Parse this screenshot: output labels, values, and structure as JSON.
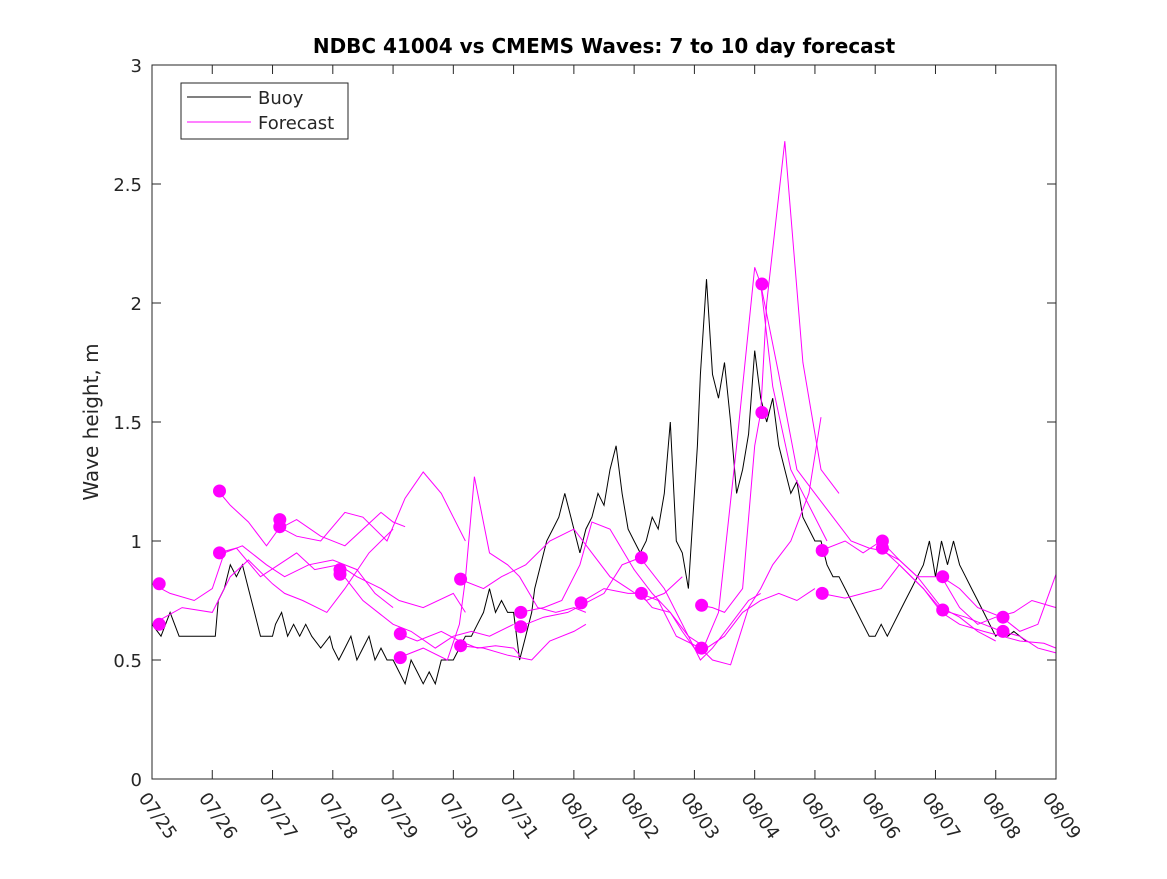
{
  "chart_data": {
    "type": "line",
    "title": "NDBC 41004 vs CMEMS Waves: 7 to 10 day forecast",
    "xlabel": "",
    "ylabel": "Wave height, m",
    "xlim": [
      0,
      15
    ],
    "ylim": [
      0,
      3
    ],
    "x_tick_labels": [
      "07/25",
      "07/26",
      "07/27",
      "07/28",
      "07/29",
      "07/30",
      "07/31",
      "08/01",
      "08/02",
      "08/03",
      "08/04",
      "08/05",
      "08/06",
      "08/07",
      "08/08",
      "08/09"
    ],
    "y_ticks": [
      0,
      0.5,
      1,
      1.5,
      2,
      2.5,
      3
    ],
    "y_tick_labels": [
      "0",
      "0.5",
      "1",
      "1.5",
      "2",
      "2.5",
      "3"
    ],
    "legend": {
      "position": "top-left",
      "entries": [
        "Buoy",
        "Forecast"
      ]
    },
    "colors": {
      "buoy": "#000000",
      "forecast": "#ff00ff"
    },
    "series": [
      {
        "name": "Buoy",
        "x": [
          0,
          0.15,
          0.3,
          0.45,
          0.6,
          0.75,
          0.9,
          1.05,
          1.1,
          1.2,
          1.3,
          1.4,
          1.5,
          1.6,
          1.7,
          1.8,
          1.9,
          2.0,
          2.05,
          2.15,
          2.25,
          2.35,
          2.45,
          2.55,
          2.65,
          2.8,
          2.95,
          3.0,
          3.1,
          3.2,
          3.3,
          3.4,
          3.5,
          3.6,
          3.7,
          3.8,
          3.9,
          4.0,
          4.1,
          4.2,
          4.3,
          4.4,
          4.5,
          4.6,
          4.7,
          4.8,
          4.9,
          5.0,
          5.1,
          5.2,
          5.3,
          5.4,
          5.5,
          5.6,
          5.7,
          5.8,
          5.9,
          6.0,
          6.1,
          6.2,
          6.3,
          6.35,
          6.45,
          6.55,
          6.65,
          6.75,
          6.85,
          6.95,
          7.0,
          7.05,
          7.1,
          7.2,
          7.3,
          7.4,
          7.5,
          7.6,
          7.7,
          7.8,
          7.9,
          8.0,
          8.1,
          8.2,
          8.3,
          8.4,
          8.5,
          8.6,
          8.7,
          8.8,
          8.9,
          9.0,
          9.05,
          9.1,
          9.2,
          9.3,
          9.4,
          9.5,
          9.6,
          9.7,
          9.8,
          9.9,
          10.0,
          10.1,
          10.2,
          10.3,
          10.4,
          10.5,
          10.6,
          10.7,
          10.8,
          10.9,
          11.0,
          11.1,
          11.2,
          11.3,
          11.4,
          11.5,
          11.6,
          11.7,
          11.8,
          11.9,
          12.0,
          12.1,
          12.2,
          12.3,
          12.4,
          12.5,
          12.6,
          12.7,
          12.8,
          12.9,
          13.0,
          13.1,
          13.2,
          13.3,
          13.4,
          13.5,
          13.6,
          13.7,
          13.8,
          13.9,
          14.0,
          14.1,
          14.2,
          14.3,
          14.4,
          14.5
        ],
        "values": [
          0.65,
          0.6,
          0.7,
          0.6,
          0.6,
          0.6,
          0.6,
          0.6,
          0.75,
          0.8,
          0.9,
          0.85,
          0.9,
          0.8,
          0.7,
          0.6,
          0.6,
          0.6,
          0.65,
          0.7,
          0.6,
          0.65,
          0.6,
          0.65,
          0.6,
          0.55,
          0.6,
          0.55,
          0.5,
          0.55,
          0.6,
          0.5,
          0.55,
          0.6,
          0.5,
          0.55,
          0.5,
          0.5,
          0.45,
          0.4,
          0.5,
          0.45,
          0.4,
          0.45,
          0.4,
          0.5,
          0.5,
          0.5,
          0.55,
          0.6,
          0.6,
          0.65,
          0.7,
          0.8,
          0.7,
          0.75,
          0.7,
          0.7,
          0.5,
          0.6,
          0.7,
          0.8,
          0.9,
          1.0,
          1.05,
          1.1,
          1.2,
          1.1,
          1.05,
          1.0,
          0.95,
          1.05,
          1.1,
          1.2,
          1.15,
          1.3,
          1.4,
          1.2,
          1.05,
          1.0,
          0.95,
          1.0,
          1.1,
          1.05,
          1.2,
          1.5,
          1.0,
          0.95,
          0.8,
          1.2,
          1.4,
          1.7,
          2.1,
          1.7,
          1.6,
          1.75,
          1.5,
          1.2,
          1.3,
          1.45,
          1.8,
          1.6,
          1.5,
          1.6,
          1.4,
          1.3,
          1.2,
          1.25,
          1.1,
          1.05,
          1.0,
          1.0,
          0.9,
          0.85,
          0.85,
          0.8,
          0.75,
          0.7,
          0.65,
          0.6,
          0.6,
          0.65,
          0.6,
          0.65,
          0.7,
          0.75,
          0.8,
          0.85,
          0.9,
          1.0,
          0.85,
          1.0,
          0.9,
          1.0,
          0.9,
          0.85,
          0.8,
          0.75,
          0.7,
          0.65,
          0.6,
          0.62,
          0.6,
          0.62,
          0.6,
          0.58
        ]
      },
      {
        "name": "Forecast",
        "x": [
          0,
          0.5,
          1.0,
          1.3,
          1.6,
          2.0,
          2.2,
          2.5,
          2.9,
          3.2,
          3.6,
          4.0
        ],
        "values": [
          0.65,
          0.72,
          0.7,
          0.85,
          0.92,
          0.82,
          0.78,
          0.75,
          0.7,
          0.8,
          0.95,
          1.05
        ]
      },
      {
        "x": [
          0,
          0.3,
          0.7,
          1.0,
          1.2,
          1.5,
          1.9,
          2.2,
          2.6,
          3.0,
          3.4,
          3.7,
          4.0
        ],
        "values": [
          0.82,
          0.78,
          0.75,
          0.8,
          0.95,
          0.98,
          0.9,
          0.85,
          0.9,
          0.92,
          0.88,
          0.78,
          0.72
        ]
      },
      {
        "x": [
          1.1,
          1.3,
          1.6,
          1.9,
          2.1,
          2.4,
          2.8,
          3.2,
          3.5,
          3.8,
          4.0,
          4.2
        ],
        "values": [
          1.21,
          1.15,
          1.08,
          0.98,
          1.05,
          1.09,
          1.02,
          0.98,
          1.05,
          1.12,
          1.08,
          1.06
        ]
      },
      {
        "x": [
          1.1,
          1.4,
          1.8,
          2.1,
          2.4,
          2.7,
          3.1,
          3.4,
          3.8,
          4.1,
          4.5,
          5.0,
          5.2
        ],
        "values": [
          0.95,
          0.97,
          0.85,
          0.9,
          0.95,
          0.88,
          0.9,
          0.85,
          0.8,
          0.75,
          0.72,
          0.78,
          0.7
        ]
      },
      {
        "x": [
          2.1,
          2.4,
          2.8,
          3.2,
          3.5,
          3.9,
          4.2,
          4.5,
          4.8,
          5.0,
          5.2
        ],
        "values": [
          1.06,
          1.02,
          1.0,
          1.12,
          1.1,
          1.0,
          1.18,
          1.29,
          1.2,
          1.1,
          1.0
        ]
      },
      {
        "x": [
          3.1,
          3.5,
          4.0,
          4.3,
          4.7,
          5.0,
          5.3,
          5.6,
          6.0
        ],
        "values": [
          0.88,
          0.75,
          0.65,
          0.62,
          0.55,
          0.6,
          0.62,
          0.6,
          0.65
        ]
      },
      {
        "x": [
          4.1,
          4.4,
          4.8,
          5.1,
          5.4,
          5.7,
          6.0,
          6.1
        ],
        "values": [
          0.61,
          0.58,
          0.62,
          0.58,
          0.55,
          0.56,
          0.55,
          0.52
        ]
      },
      {
        "x": [
          4.1,
          4.5,
          4.9,
          5.1,
          5.2,
          5.35,
          5.6,
          5.9,
          6.1,
          6.4,
          6.7,
          7.0,
          7.2
        ],
        "values": [
          0.51,
          0.55,
          0.5,
          0.65,
          0.84,
          1.27,
          0.95,
          0.9,
          0.85,
          0.72,
          0.7,
          0.72,
          0.7
        ]
      },
      {
        "x": [
          5.1,
          5.5,
          5.8,
          6.2,
          6.6,
          7.0,
          7.3,
          7.6,
          7.9,
          8.2,
          8.5,
          8.8
        ],
        "values": [
          0.84,
          0.8,
          0.85,
          0.9,
          1.0,
          1.05,
          0.95,
          0.85,
          0.8,
          0.75,
          0.78,
          0.85
        ]
      },
      {
        "x": [
          5.1,
          5.5,
          5.9,
          6.3,
          6.6,
          7.0,
          7.2
        ],
        "values": [
          0.56,
          0.55,
          0.52,
          0.5,
          0.58,
          0.62,
          0.65
        ]
      },
      {
        "x": [
          6.1,
          6.5,
          6.9,
          7.2,
          7.5,
          7.8,
          8.1,
          8.5,
          8.9,
          9.2,
          9.5,
          9.8,
          10.1,
          10.4,
          10.7,
          11.0
        ],
        "values": [
          0.64,
          0.68,
          0.7,
          0.74,
          0.78,
          0.9,
          0.93,
          0.8,
          0.6,
          0.55,
          0.6,
          0.7,
          0.75,
          0.78,
          0.75,
          0.8
        ]
      },
      {
        "x": [
          6.1,
          6.5,
          6.8,
          7.1,
          7.3,
          7.6,
          8.0,
          8.3,
          8.6,
          8.9,
          9.1,
          9.3,
          9.6,
          9.9,
          10.1
        ],
        "values": [
          0.7,
          0.72,
          0.75,
          0.9,
          1.08,
          1.05,
          0.88,
          0.78,
          0.7,
          0.6,
          0.5,
          0.55,
          0.65,
          0.75,
          0.78
        ]
      },
      {
        "x": [
          7.1,
          7.5,
          7.9,
          8.1,
          8.4,
          8.7,
          9.1,
          9.3,
          9.6,
          9.9,
          10.1,
          10.3,
          10.6,
          10.9,
          11.1
        ],
        "values": [
          0.74,
          0.8,
          0.78,
          0.78,
          0.75,
          0.6,
          0.55,
          0.5,
          0.48,
          0.72,
          0.8,
          0.9,
          1.0,
          1.2,
          1.52
        ]
      },
      {
        "x": [
          8.1,
          8.3,
          8.6,
          8.8,
          9.0,
          9.15,
          9.4,
          9.7,
          10.0,
          10.1,
          10.3,
          10.6,
          10.9,
          11.2
        ],
        "values": [
          0.78,
          0.72,
          0.7,
          0.62,
          0.55,
          0.55,
          0.7,
          1.4,
          2.15,
          2.08,
          1.65,
          1.3,
          1.15,
          1.0
        ]
      },
      {
        "x": [
          9.1,
          9.3,
          9.5,
          9.8,
          10.0,
          10.1,
          10.2,
          10.5,
          10.8,
          11.1,
          11.4
        ],
        "values": [
          0.73,
          0.72,
          0.7,
          0.8,
          1.4,
          1.54,
          2.0,
          2.68,
          1.75,
          1.3,
          1.2
        ]
      },
      {
        "x": [
          10.1,
          10.4,
          10.7,
          11.0,
          11.3,
          11.6,
          11.9,
          12.1,
          12.4,
          12.7,
          13.1,
          13.4,
          13.7,
          14.0
        ],
        "values": [
          2.08,
          1.7,
          1.3,
          1.2,
          1.1,
          1.0,
          0.97,
          0.96,
          0.92,
          0.85,
          0.72,
          0.68,
          0.62,
          0.58
        ]
      },
      {
        "x": [
          11.1,
          11.5,
          11.8,
          12.1,
          12.4,
          12.7,
          13.1,
          13.4,
          13.7,
          14.0,
          14.3,
          14.6,
          15.0
        ],
        "values": [
          0.96,
          1.0,
          0.95,
          1.0,
          0.92,
          0.85,
          0.85,
          0.72,
          0.65,
          0.68,
          0.7,
          0.75,
          0.72
        ]
      },
      {
        "x": [
          11.1,
          11.5,
          11.8,
          12.1,
          12.4,
          12.8,
          13.1,
          13.5,
          13.8,
          14.1,
          14.4,
          14.7,
          15.0
        ],
        "values": [
          0.78,
          0.76,
          0.78,
          0.8,
          0.9,
          0.8,
          0.71,
          0.68,
          0.65,
          0.62,
          0.6,
          0.55,
          0.53
        ]
      },
      {
        "x": [
          12.1,
          12.4,
          12.8,
          13.1,
          13.4,
          13.8,
          14.1,
          14.4,
          14.8,
          15.0
        ],
        "values": [
          0.97,
          0.9,
          0.8,
          0.7,
          0.65,
          0.62,
          0.6,
          0.58,
          0.57,
          0.55
        ]
      },
      {
        "x": [
          13.1,
          13.4,
          13.7,
          14.1,
          14.4,
          14.7,
          15.0
        ],
        "values": [
          0.85,
          0.8,
          0.72,
          0.68,
          0.62,
          0.65,
          0.86
        ]
      }
    ],
    "markers": [
      {
        "x": 0.12,
        "y": 0.82
      },
      {
        "x": 0.12,
        "y": 0.65
      },
      {
        "x": 1.12,
        "y": 1.21
      },
      {
        "x": 1.12,
        "y": 0.95
      },
      {
        "x": 2.12,
        "y": 1.09
      },
      {
        "x": 2.12,
        "y": 1.06
      },
      {
        "x": 3.12,
        "y": 0.88
      },
      {
        "x": 3.12,
        "y": 0.86
      },
      {
        "x": 4.12,
        "y": 0.61
      },
      {
        "x": 4.12,
        "y": 0.51
      },
      {
        "x": 5.12,
        "y": 0.84
      },
      {
        "x": 5.12,
        "y": 0.56
      },
      {
        "x": 6.12,
        "y": 0.7
      },
      {
        "x": 6.12,
        "y": 0.64
      },
      {
        "x": 7.12,
        "y": 0.74
      },
      {
        "x": 8.12,
        "y": 0.93
      },
      {
        "x": 8.12,
        "y": 0.78
      },
      {
        "x": 9.12,
        "y": 0.73
      },
      {
        "x": 9.12,
        "y": 0.55
      },
      {
        "x": 10.12,
        "y": 2.08
      },
      {
        "x": 10.12,
        "y": 1.54
      },
      {
        "x": 11.12,
        "y": 0.96
      },
      {
        "x": 11.12,
        "y": 0.78
      },
      {
        "x": 12.12,
        "y": 1.0
      },
      {
        "x": 12.12,
        "y": 0.97
      },
      {
        "x": 13.12,
        "y": 0.85
      },
      {
        "x": 13.12,
        "y": 0.71
      },
      {
        "x": 14.12,
        "y": 0.68
      },
      {
        "x": 14.12,
        "y": 0.62
      }
    ],
    "grid": false
  }
}
